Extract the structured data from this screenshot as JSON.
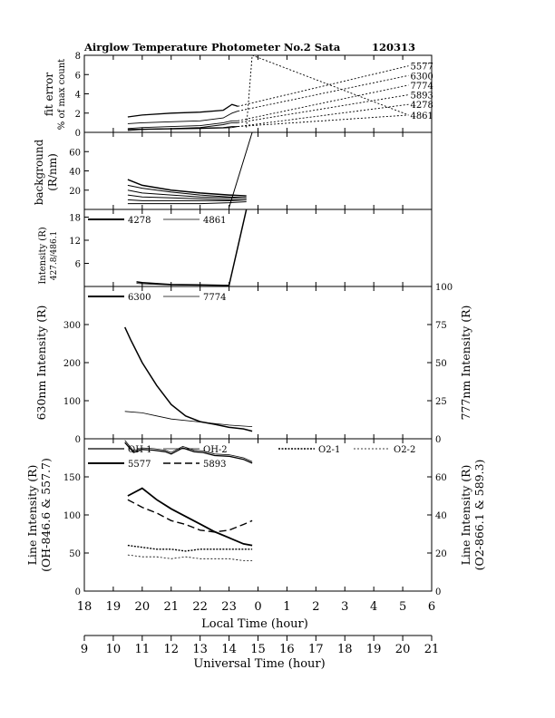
{
  "header": {
    "title": "Airglow Temperature Photometer No.2  Sata",
    "date_code": "120313"
  },
  "x_axis": {
    "label": "Local Time (hour)",
    "ticks": [
      "18",
      "19",
      "20",
      "21",
      "22",
      "23",
      "0",
      "1",
      "2",
      "3",
      "4",
      "5",
      "6"
    ]
  },
  "ut_axis": {
    "label": "Universal Time (hour)",
    "ticks": [
      "9",
      "10",
      "11",
      "12",
      "13",
      "14",
      "15",
      "16",
      "17",
      "18",
      "19",
      "20",
      "21"
    ]
  },
  "panels": {
    "fit": {
      "ylabel1": "fit error",
      "ylabel2": "% of max count",
      "yticks": [
        "0",
        "2",
        "4",
        "6",
        "8"
      ],
      "line_labels": [
        "5577",
        "6300",
        "7774",
        "5893",
        "4278",
        "4861"
      ]
    },
    "background": {
      "ylabel1": "background",
      "ylabel2": "(R/nm)",
      "yticks": [
        "20",
        "40",
        "60"
      ]
    },
    "short": {
      "ylabel1": "Intensity (R)",
      "ylabel2": "427.8/486.1",
      "yticks": [
        "6",
        "12",
        "18"
      ],
      "legend": [
        "4278",
        "4861"
      ]
    },
    "red": {
      "ylabel_left": "630nm Intensity (R)",
      "ylabel_right": "777nm Intensity (R)",
      "yticks_left": [
        "0",
        "100",
        "200",
        "300"
      ],
      "yticks_right": [
        "0",
        "25",
        "50",
        "75",
        "100"
      ],
      "legend": [
        "6300",
        "7774"
      ]
    },
    "line": {
      "ylabel_left1": "Line Intensity (R)",
      "ylabel_left2": "(OH-846.6 & 557.7)",
      "ylabel_right1": "Line Intensity (R)",
      "ylabel_right2": "(O2-866.1 & 589.3)",
      "yticks_left": [
        "0",
        "50",
        "100",
        "150"
      ],
      "yticks_right": [
        "0",
        "20",
        "40",
        "60"
      ],
      "legend": [
        "OH-1",
        "OH-2",
        "O2-1",
        "O2-2",
        "5577",
        "5893"
      ]
    }
  },
  "chart_data": [
    {
      "panel": "fit error",
      "type": "line",
      "xlim": [
        18,
        30
      ],
      "ylim": [
        0,
        8
      ],
      "series": [
        {
          "name": "5577",
          "x": [
            19.5,
            20,
            21,
            22,
            22.8,
            23.1,
            23.3
          ],
          "y": [
            1.6,
            1.8,
            2.0,
            2.1,
            2.3,
            2.9,
            2.7
          ],
          "end": [
            29.2,
            6.9
          ]
        },
        {
          "name": "6300",
          "x": [
            19.5,
            20,
            21,
            22,
            22.8,
            23.1,
            23.3
          ],
          "y": [
            0.9,
            1.0,
            1.1,
            1.2,
            1.5,
            2.0,
            2.2
          ],
          "end": [
            29.2,
            5.9
          ]
        },
        {
          "name": "7774",
          "x": [
            19.5,
            20,
            21,
            22,
            22.8,
            23.1,
            23.3
          ],
          "y": [
            0.4,
            0.5,
            0.6,
            0.7,
            1.0,
            1.2,
            1.2
          ],
          "end": [
            29.2,
            4.9
          ]
        },
        {
          "name": "5893",
          "x": [
            19.5,
            20,
            21,
            22,
            22.8,
            23.1,
            23.3
          ],
          "y": [
            0.2,
            0.3,
            0.4,
            0.5,
            0.8,
            1.0,
            1.0
          ],
          "end": [
            29.2,
            3.9
          ]
        },
        {
          "name": "4278",
          "x": [
            19.5,
            20,
            21,
            22,
            22.8,
            23.1,
            23.3
          ],
          "y": [
            0.3,
            0.35,
            0.4,
            0.45,
            0.5,
            0.6,
            0.6
          ],
          "end": [
            29.2,
            2.9
          ]
        },
        {
          "name": "4861",
          "x": [
            19.5,
            20,
            21,
            22,
            22.8,
            23.1,
            23.3
          ],
          "y": [
            0.3,
            0.3,
            0.35,
            0.4,
            0.45,
            0.5,
            0.6
          ],
          "end": [
            29.2,
            1.8
          ]
        }
      ]
    },
    {
      "panel": "background",
      "type": "line",
      "xlim": [
        18,
        30
      ],
      "ylim": [
        0,
        80
      ],
      "series": [
        {
          "x": [
            19.5,
            20,
            21,
            22,
            23,
            23.6
          ],
          "y": [
            31,
            25,
            20,
            17,
            15,
            14
          ]
        },
        {
          "x": [
            19.5,
            20,
            21,
            22,
            23,
            23.6
          ],
          "y": [
            25,
            22,
            18,
            15,
            13,
            12
          ]
        },
        {
          "x": [
            19.5,
            20,
            21,
            22,
            23,
            23.6
          ],
          "y": [
            20,
            17,
            15,
            13,
            12,
            12
          ]
        },
        {
          "x": [
            19.5,
            20,
            21,
            22,
            23,
            23.6
          ],
          "y": [
            15,
            13,
            12,
            11,
            10,
            10
          ]
        },
        {
          "x": [
            19.5,
            20,
            21,
            22,
            23,
            23.6
          ],
          "y": [
            10,
            9,
            9,
            9,
            9,
            10
          ]
        },
        {
          "x": [
            19.5,
            20,
            21,
            22,
            23,
            23.6
          ],
          "y": [
            6,
            6,
            6,
            6,
            7,
            8
          ]
        },
        {
          "x": [
            23.0,
            23.8
          ],
          "y": [
            2,
            80
          ]
        }
      ]
    },
    {
      "panel": "427.8/486.1 intensity",
      "type": "line",
      "xlim": [
        18,
        30
      ],
      "ylim": [
        0,
        20
      ],
      "series": [
        {
          "name": "4278",
          "x": [
            19.8,
            20,
            21,
            22,
            22.8,
            23.0,
            23.6
          ],
          "y": [
            1.2,
            1.0,
            0.5,
            0.4,
            0.3,
            0.3,
            20
          ]
        },
        {
          "name": "4861",
          "x": [
            19.8,
            20,
            21,
            22,
            22.8,
            23.0
          ],
          "y": [
            0.8,
            0.7,
            0.4,
            0.3,
            0.3,
            0.3
          ]
        }
      ]
    },
    {
      "panel": "630/777 intensity",
      "type": "line",
      "xlim": [
        18,
        30
      ],
      "ylim_left": [
        0,
        400
      ],
      "ylim_right": [
        0,
        100
      ],
      "series": [
        {
          "name": "6300",
          "axis": "left",
          "x": [
            19.4,
            19.6,
            20,
            20.5,
            21,
            21.5,
            22,
            22.5,
            23,
            23.5,
            23.8
          ],
          "y": [
            293,
            260,
            200,
            140,
            90,
            60,
            45,
            38,
            30,
            26,
            20
          ]
        },
        {
          "name": "7774",
          "axis": "right",
          "x": [
            19.4,
            20,
            20.5,
            21,
            22,
            23,
            23.8
          ],
          "y": [
            18,
            17,
            15,
            13,
            11,
            9,
            8
          ]
        }
      ]
    },
    {
      "panel": "line intensity",
      "type": "line",
      "xlim": [
        18,
        30
      ],
      "ylim_left": [
        0,
        200
      ],
      "ylim_right": [
        0,
        80
      ],
      "series": [
        {
          "name": "OH-1",
          "axis": "left",
          "x": [
            19.4,
            19.7,
            20.0,
            20.4,
            20.8,
            21.0,
            21.4,
            21.8,
            22.1,
            22.5,
            23.0,
            23.5,
            23.8
          ],
          "y": [
            195,
            182,
            186,
            185,
            183,
            180,
            188,
            183,
            182,
            178,
            177,
            173,
            168
          ]
        },
        {
          "name": "OH-2",
          "axis": "left",
          "x": [
            19.4,
            19.7,
            20.0,
            20.4,
            20.8,
            21.0,
            21.4,
            21.8,
            22.1,
            22.5,
            23.0,
            23.5,
            23.8
          ],
          "y": [
            198,
            184,
            188,
            187,
            185,
            182,
            190,
            185,
            184,
            180,
            179,
            175,
            170
          ]
        },
        {
          "name": "5577",
          "axis": "left",
          "x": [
            19.5,
            20,
            20.5,
            21,
            21.5,
            22,
            22.5,
            23,
            23.5,
            23.8
          ],
          "y": [
            125,
            135,
            120,
            108,
            98,
            88,
            78,
            70,
            62,
            60
          ]
        },
        {
          "name": "5893",
          "axis": "right",
          "x": [
            19.5,
            20,
            20.5,
            21,
            21.5,
            22,
            22.5,
            23,
            23.5,
            23.8
          ],
          "y": [
            48,
            44,
            41,
            37,
            35,
            32,
            31,
            32,
            35,
            37
          ]
        },
        {
          "name": "O2-1",
          "axis": "right",
          "x": [
            19.5,
            20,
            20.5,
            21,
            21.5,
            22,
            22.5,
            23,
            23.5,
            23.8
          ],
          "y": [
            24,
            23,
            22,
            22,
            21,
            22,
            22,
            22,
            22,
            22
          ]
        },
        {
          "name": "O2-2",
          "axis": "right",
          "x": [
            19.5,
            20,
            20.5,
            21,
            21.5,
            22,
            22.5,
            23,
            23.5,
            23.8
          ],
          "y": [
            19,
            18,
            18,
            17,
            18,
            17,
            17,
            17,
            16,
            16
          ]
        }
      ]
    }
  ]
}
